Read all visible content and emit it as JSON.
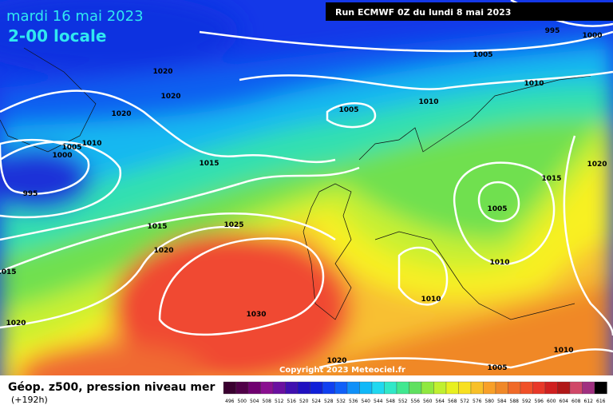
{
  "header": {
    "date": "mardi 16 mai 2023",
    "time": "2-00 locale",
    "run": "Run ECMWF 0Z du lundi 8 mai 2023"
  },
  "isobar_labels": [
    1020,
    1020,
    1020,
    1005,
    1010,
    1000,
    995,
    1015,
    1015,
    1025,
    1020,
    1015,
    1020,
    1030,
    1020,
    1005,
    1010,
    1010,
    1010,
    1005,
    1015,
    1020,
    1010,
    1005,
    1005,
    1010,
    995,
    1000
  ],
  "footer": {
    "title": "Géop. z500, pression niveau mer",
    "lead": "(+192h)",
    "copyright": "Copyright 2023 Meteociel.fr"
  },
  "legend": {
    "labels": [
      496,
      500,
      504,
      508,
      512,
      516,
      520,
      524,
      528,
      532,
      536,
      540,
      544,
      548,
      552,
      556,
      560,
      564,
      568,
      572,
      576,
      580,
      584,
      588,
      592,
      596,
      600,
      604,
      608,
      612,
      616
    ]
  }
}
